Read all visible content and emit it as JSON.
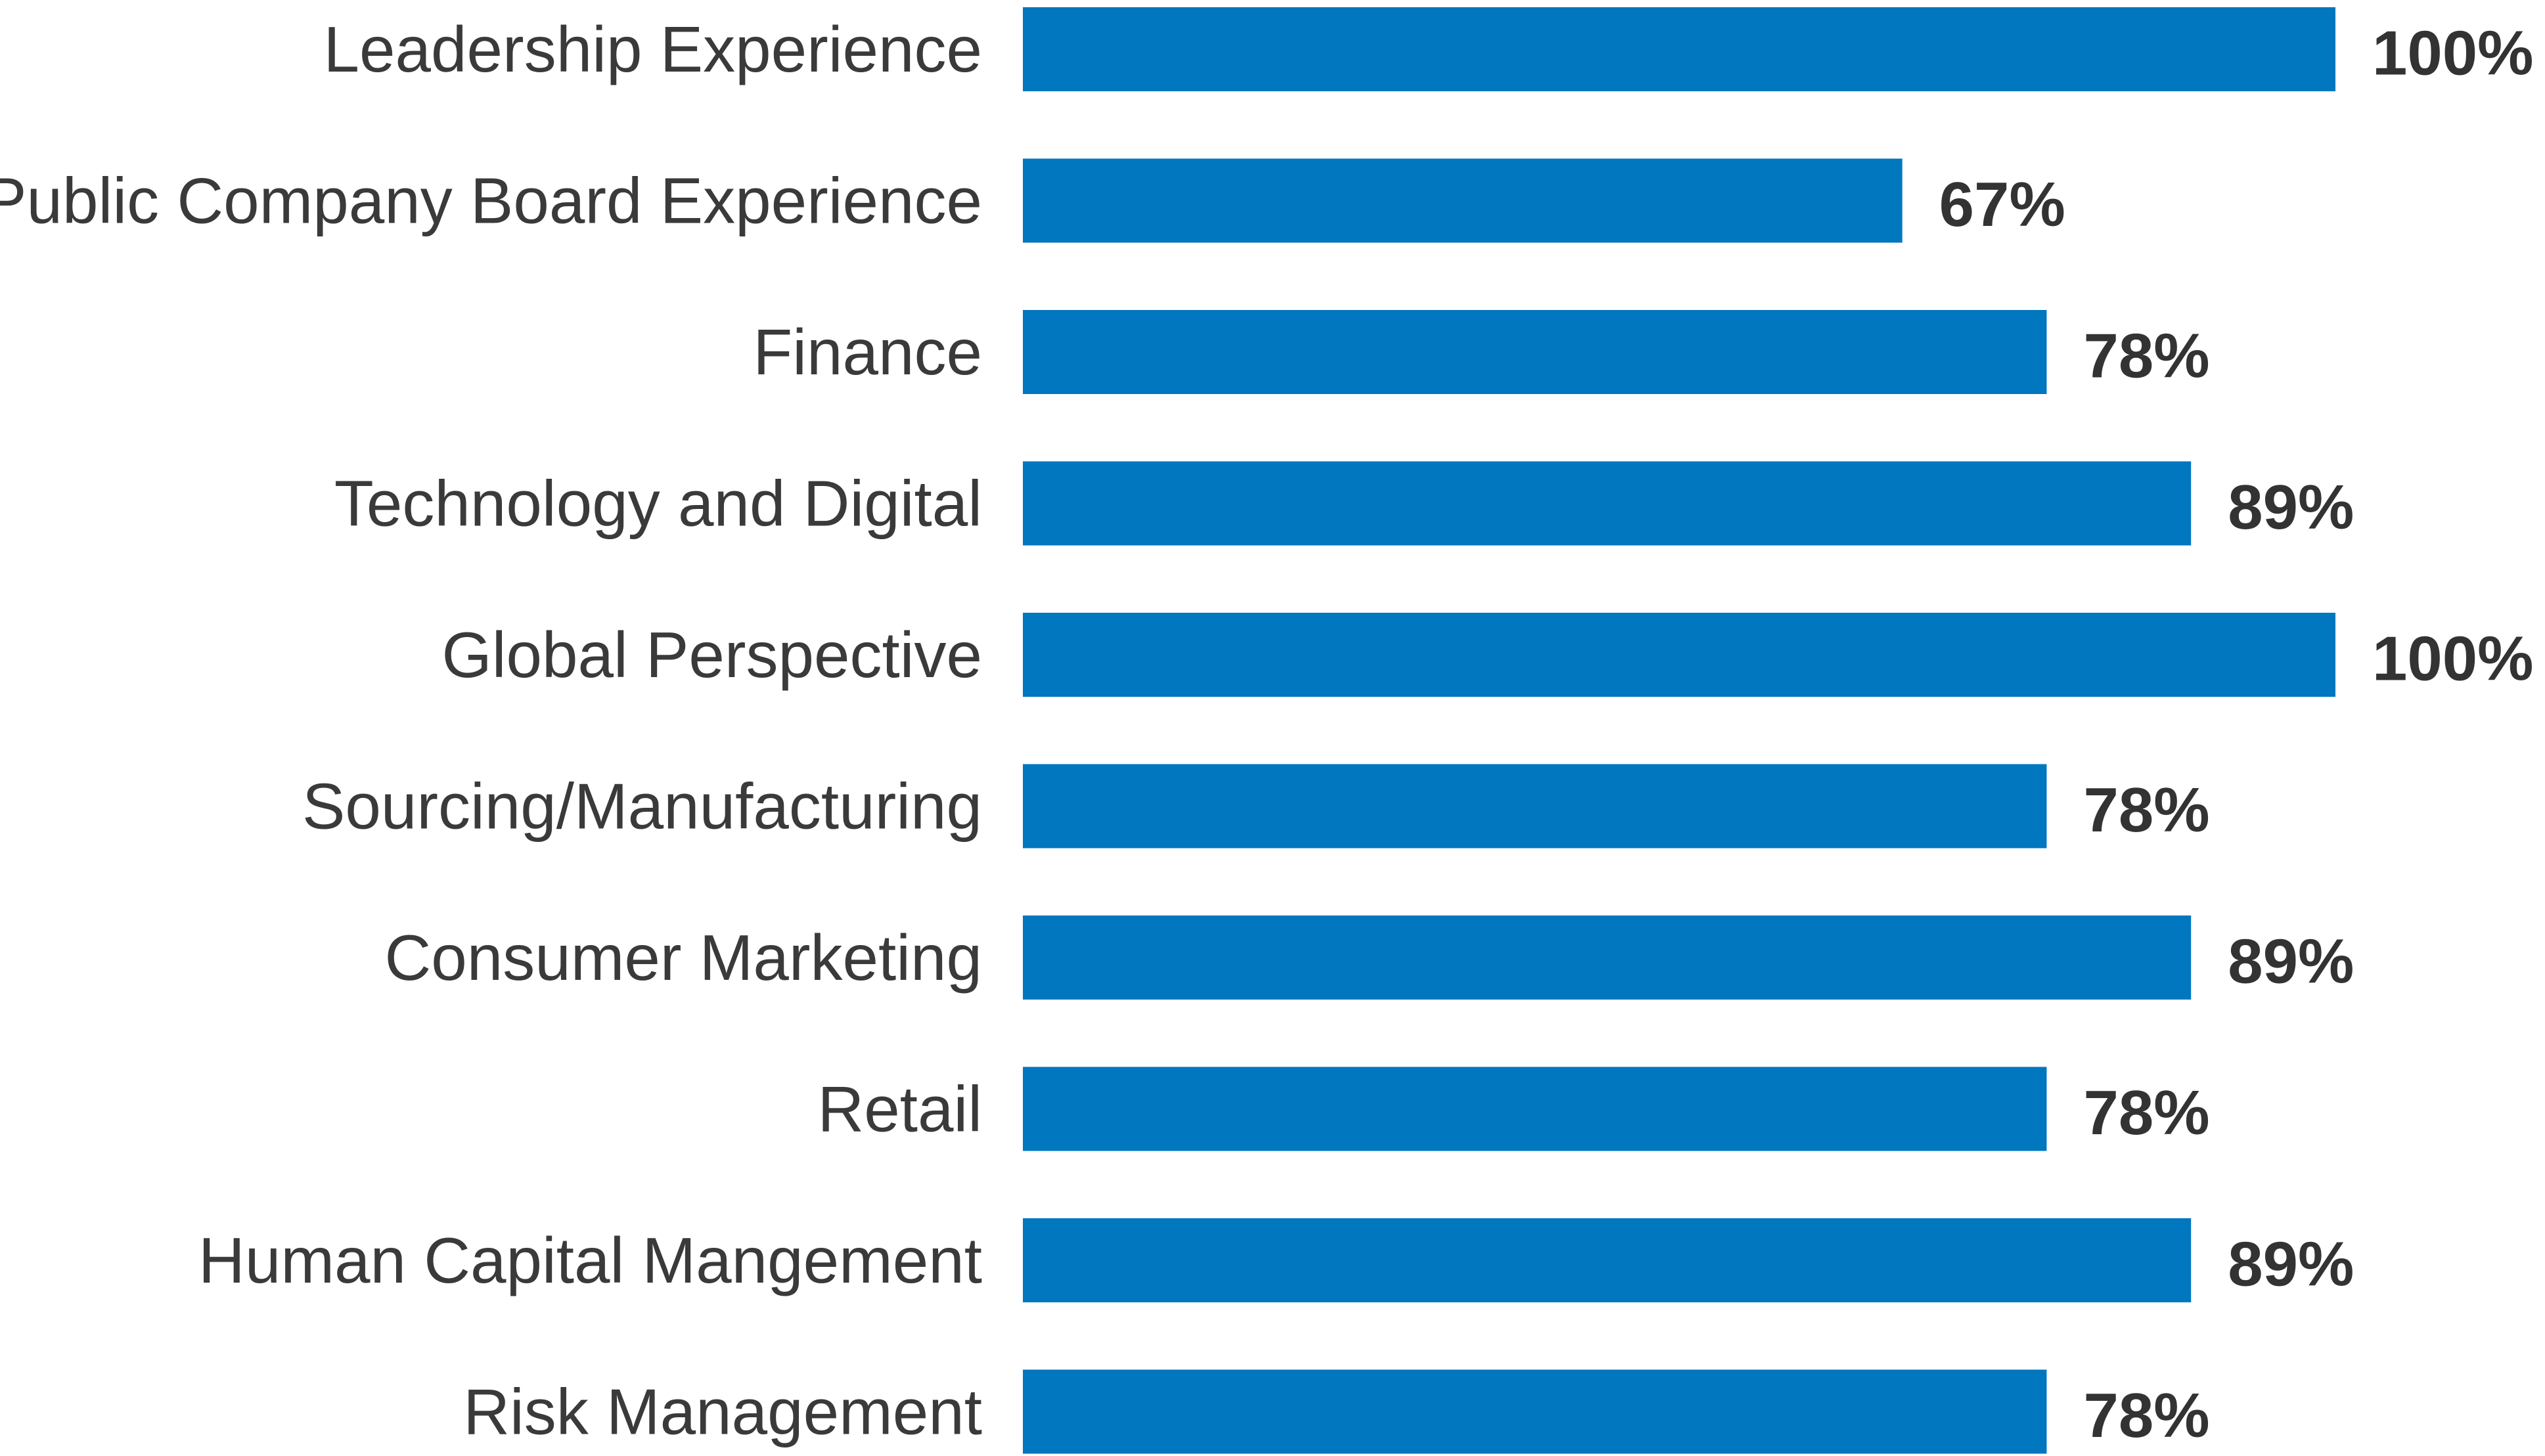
{
  "chart_data": {
    "type": "bar",
    "orientation": "horizontal",
    "title": "",
    "xlabel": "",
    "ylabel": "",
    "xlim": [
      0,
      100
    ],
    "grid": false,
    "legend": "none",
    "categories": [
      "Leadership Experience",
      "Public Company Board Experience",
      "Finance",
      "Technology and Digital",
      "Global Perspective",
      "Sourcing/Manufacturing",
      "Consumer Marketing",
      "Retail",
      "Human Capital Mangement",
      "Risk Management"
    ],
    "values": [
      100,
      67,
      78,
      89,
      100,
      78,
      89,
      78,
      89,
      78
    ],
    "value_labels": [
      "100%",
      "67%",
      "78%",
      "89%",
      "100%",
      "78%",
      "89%",
      "78%",
      "89%",
      "78%"
    ],
    "bar_color": "#0077bf",
    "label_color": "#3a3a3a",
    "value_label_color": "#333333"
  }
}
